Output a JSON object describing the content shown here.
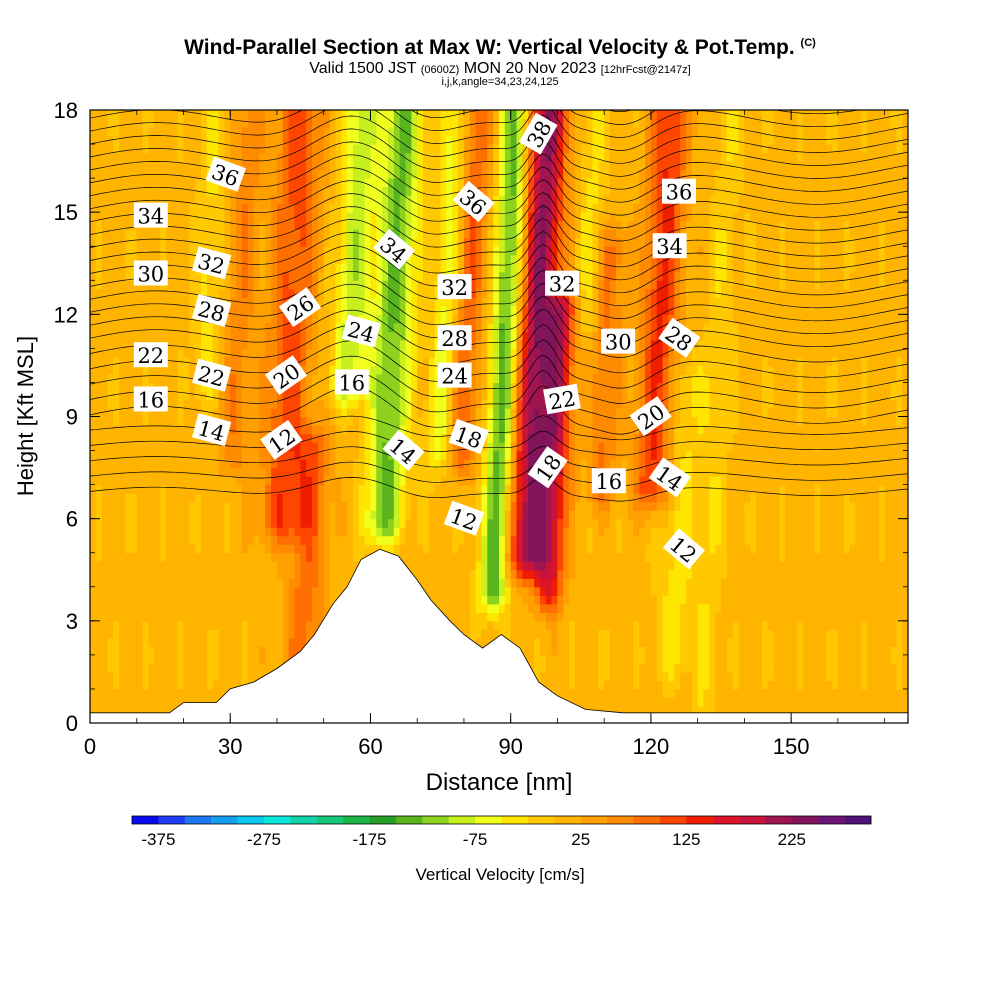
{
  "header": {
    "title": "Wind-Parallel Section at Max W: Vertical Velocity & Pot.Temp.",
    "copyright": "(C)",
    "valid_prefix": "Valid 1500 JST",
    "valid_utc": "(0600Z)",
    "valid_day": "MON 20 Nov 2023",
    "forecast": "[12hrFcst@2147z]",
    "indices": "i,j,k,angle=34,23,24,125"
  },
  "chart_data": {
    "type": "heatmap",
    "xlabel": "Distance [nm]",
    "ylabel": "Height [Kft MSL]",
    "xlim": [
      0,
      175
    ],
    "ylim": [
      0,
      18
    ],
    "x_ticks": [
      0,
      30,
      60,
      90,
      120,
      150
    ],
    "y_ticks": [
      0,
      3,
      6,
      9,
      12,
      15,
      18
    ],
    "colorbar": {
      "label": "Vertical Velocity [cm/s]",
      "tick_labels": [
        -375,
        -275,
        -175,
        -75,
        25,
        125,
        225
      ],
      "levels_min": -400,
      "level_step": 25,
      "colors": [
        "#0a0af0",
        "#1e3cf5",
        "#1e78f5",
        "#14a0f0",
        "#0ac8f0",
        "#0ae6dc",
        "#14d2aa",
        "#14c878",
        "#1eb446",
        "#28a028",
        "#5ab41e",
        "#8cd21e",
        "#c8f01e",
        "#f0ff1e",
        "#ffe600",
        "#ffc800",
        "#ffb400",
        "#ffa000",
        "#ff8c00",
        "#ff6e00",
        "#ff4600",
        "#f01e00",
        "#dc1428",
        "#c8143c",
        "#a01450",
        "#82145a",
        "#6e1478",
        "#501478"
      ]
    },
    "terrain_kft": [
      [
        0,
        0.3
      ],
      [
        10,
        0.3
      ],
      [
        17,
        0.3
      ],
      [
        20,
        0.6
      ],
      [
        27,
        0.6
      ],
      [
        30,
        1.0
      ],
      [
        35,
        1.2
      ],
      [
        40,
        1.6
      ],
      [
        45,
        2.1
      ],
      [
        48,
        2.6
      ],
      [
        52,
        3.5
      ],
      [
        55,
        4.0
      ],
      [
        58,
        4.8
      ],
      [
        62,
        5.1
      ],
      [
        66,
        4.9
      ],
      [
        70,
        4.2
      ],
      [
        73,
        3.6
      ],
      [
        77,
        3.0
      ],
      [
        80,
        2.6
      ],
      [
        84,
        2.2
      ],
      [
        88,
        2.6
      ],
      [
        92,
        2.2
      ],
      [
        96,
        1.2
      ],
      [
        100,
        0.8
      ],
      [
        106,
        0.4
      ],
      [
        114,
        0.3
      ],
      [
        130,
        0.3
      ],
      [
        150,
        0.3
      ],
      [
        175,
        0.3
      ]
    ],
    "velocity_features": [
      {
        "x": 95,
        "height_range": [
          5,
          18
        ],
        "w": 215,
        "width_nm": 4
      },
      {
        "x": 100,
        "height_range": [
          4,
          12
        ],
        "w": 150,
        "width_nm": 3
      },
      {
        "x": 121,
        "height_range": [
          7,
          18
        ],
        "w": 120,
        "width_nm": 4
      },
      {
        "x": 110,
        "height_range": [
          7,
          14
        ],
        "w": 70,
        "width_nm": 3
      },
      {
        "x": 42,
        "height_range": [
          6,
          18
        ],
        "w": 100,
        "width_nm": 5
      },
      {
        "x": 31,
        "height_range": [
          8,
          18
        ],
        "w": 60,
        "width_nm": 3
      },
      {
        "x": 80,
        "height_range": [
          8,
          18
        ],
        "w": 90,
        "width_nm": 3
      },
      {
        "x": 48,
        "height_range": [
          1,
          8
        ],
        "w": 80,
        "width_nm": 4
      },
      {
        "x": 64,
        "height_range": [
          6,
          18
        ],
        "w": -140,
        "width_nm": 4
      },
      {
        "x": 88,
        "height_range": [
          4,
          18
        ],
        "w": -150,
        "width_nm": 3
      },
      {
        "x": 55,
        "height_range": [
          10,
          18
        ],
        "w": -100,
        "width_nm": 4
      },
      {
        "x": 75,
        "height_range": [
          8,
          18
        ],
        "w": -70,
        "width_nm": 3
      },
      {
        "x": 105,
        "height_range": [
          12,
          18
        ],
        "w": -40,
        "width_nm": 3
      },
      {
        "x": 127,
        "height_range": [
          2,
          10
        ],
        "w": -45,
        "width_nm": 4
      },
      {
        "x": 134,
        "height_range": [
          0,
          18
        ],
        "w": -30,
        "width_nm": 3
      },
      {
        "x": 24,
        "height_range": [
          10,
          18
        ],
        "w": -40,
        "width_nm": 3
      }
    ],
    "theta_labels": [
      {
        "text": "36",
        "x": 29,
        "y": 16.1,
        "rotate": 20
      },
      {
        "text": "34",
        "x": 13,
        "y": 14.9,
        "rotate": 0
      },
      {
        "text": "32",
        "x": 26,
        "y": 13.5,
        "rotate": 15
      },
      {
        "text": "30",
        "x": 13,
        "y": 13.2,
        "rotate": 0
      },
      {
        "text": "28",
        "x": 26,
        "y": 12.1,
        "rotate": 15
      },
      {
        "text": "26",
        "x": 45,
        "y": 12.2,
        "rotate": -35
      },
      {
        "text": "24",
        "x": 58,
        "y": 11.5,
        "rotate": 15
      },
      {
        "text": "22",
        "x": 13,
        "y": 10.8,
        "rotate": 0
      },
      {
        "text": "22",
        "x": 26,
        "y": 10.2,
        "rotate": 15
      },
      {
        "text": "20",
        "x": 42,
        "y": 10.2,
        "rotate": -35
      },
      {
        "text": "16",
        "x": 56,
        "y": 10.0,
        "rotate": 0
      },
      {
        "text": "16",
        "x": 13,
        "y": 9.5,
        "rotate": 0
      },
      {
        "text": "14",
        "x": 26,
        "y": 8.6,
        "rotate": 15
      },
      {
        "text": "12",
        "x": 41,
        "y": 8.3,
        "rotate": -35
      },
      {
        "text": "14",
        "x": 67,
        "y": 8.0,
        "rotate": 40
      },
      {
        "text": "34",
        "x": 65,
        "y": 13.9,
        "rotate": 40
      },
      {
        "text": "38",
        "x": 96,
        "y": 17.3,
        "rotate": -60
      },
      {
        "text": "36",
        "x": 82,
        "y": 15.3,
        "rotate": 40
      },
      {
        "text": "32",
        "x": 78,
        "y": 12.8,
        "rotate": 0
      },
      {
        "text": "28",
        "x": 78,
        "y": 11.3,
        "rotate": 0
      },
      {
        "text": "24",
        "x": 78,
        "y": 10.2,
        "rotate": 0
      },
      {
        "text": "18",
        "x": 81,
        "y": 8.4,
        "rotate": 20
      },
      {
        "text": "12",
        "x": 80,
        "y": 6.0,
        "rotate": 20
      },
      {
        "text": "32",
        "x": 101,
        "y": 12.9,
        "rotate": 0
      },
      {
        "text": "22",
        "x": 101,
        "y": 9.5,
        "rotate": -10
      },
      {
        "text": "18",
        "x": 98,
        "y": 7.5,
        "rotate": -55
      },
      {
        "text": "16",
        "x": 111,
        "y": 7.1,
        "rotate": 0
      },
      {
        "text": "30",
        "x": 113,
        "y": 11.2,
        "rotate": 0
      },
      {
        "text": "20",
        "x": 120,
        "y": 9.0,
        "rotate": -35
      },
      {
        "text": "36",
        "x": 126,
        "y": 15.6,
        "rotate": 0
      },
      {
        "text": "34",
        "x": 124,
        "y": 14.0,
        "rotate": 0
      },
      {
        "text": "28",
        "x": 126,
        "y": 11.3,
        "rotate": 35
      },
      {
        "text": "14",
        "x": 124,
        "y": 7.2,
        "rotate": 35
      },
      {
        "text": "12",
        "x": 127,
        "y": 5.1,
        "rotate": 40
      }
    ]
  }
}
